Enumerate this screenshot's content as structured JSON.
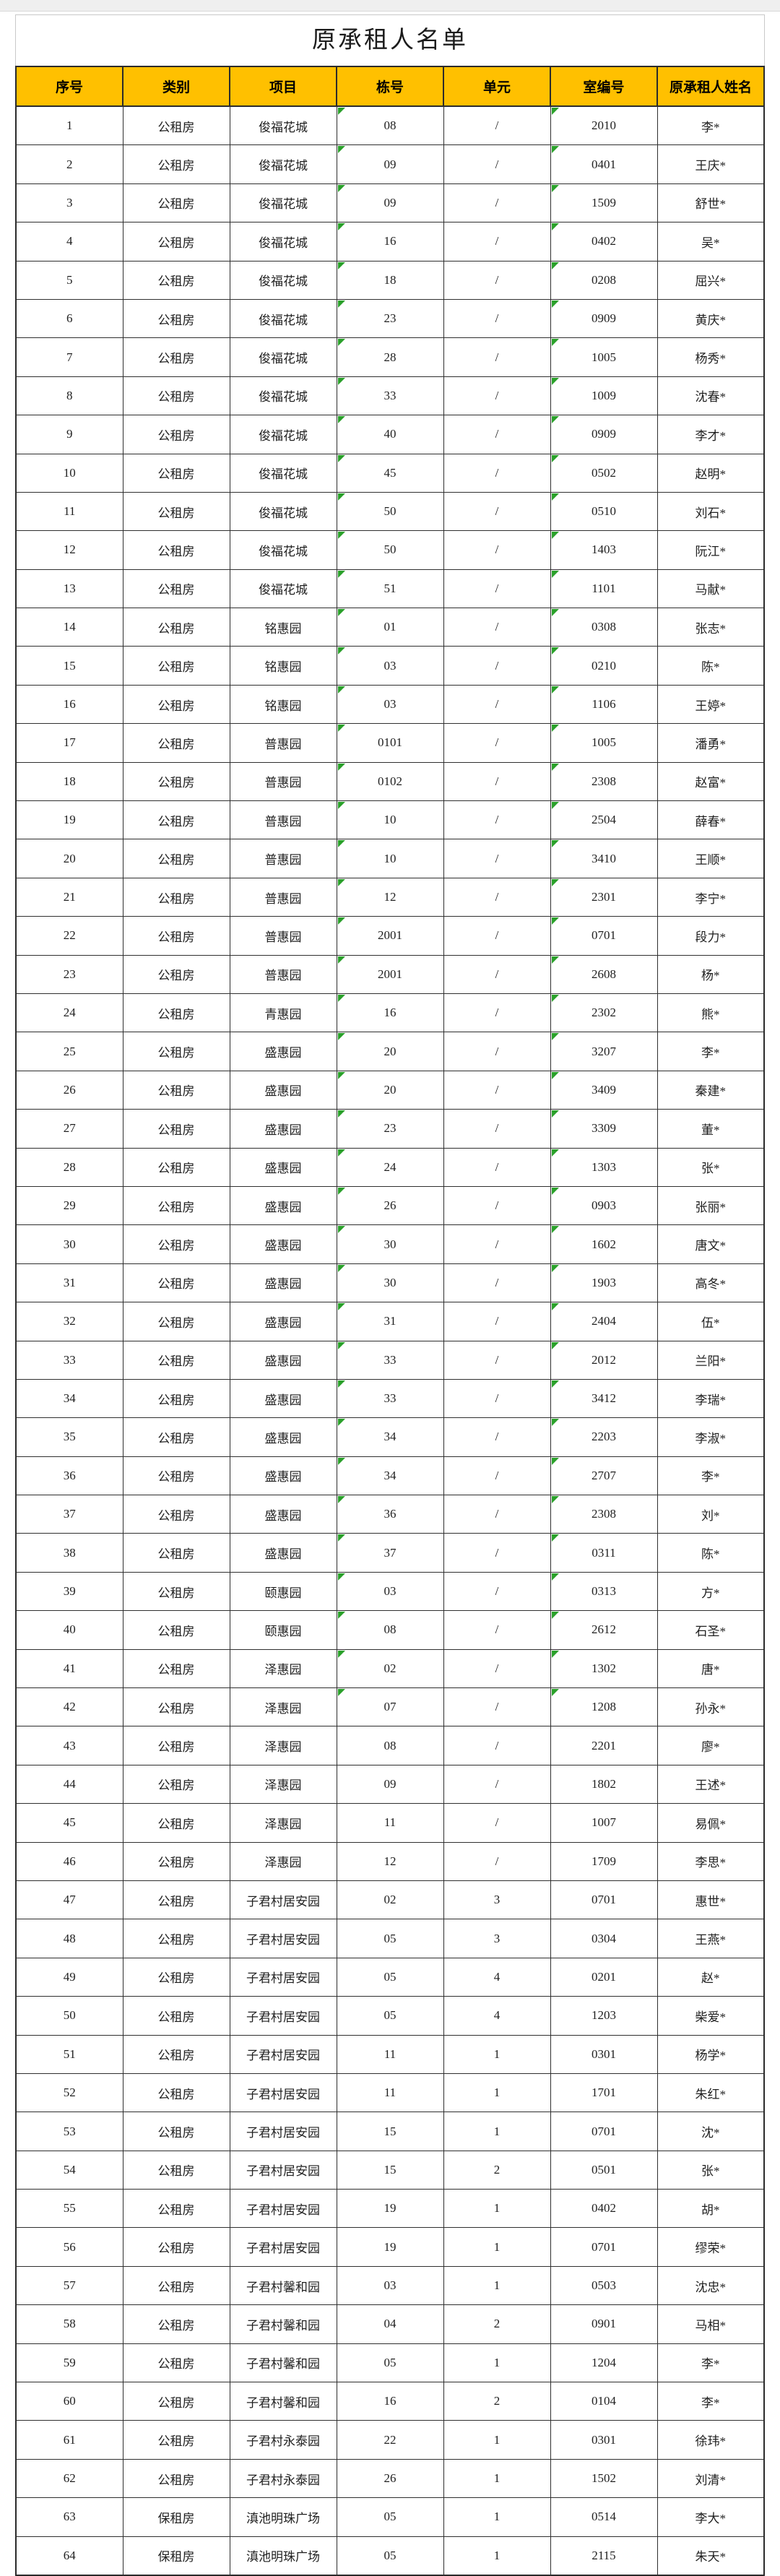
{
  "table": {
    "title": "原承租人名单",
    "columns": [
      "序号",
      "类别",
      "项目",
      "栋号",
      "单元",
      "室编号",
      "原承租人姓名"
    ],
    "rows": [
      [
        "1",
        "公租房",
        "俊福花城",
        "08",
        "/",
        "2010",
        "李*"
      ],
      [
        "2",
        "公租房",
        "俊福花城",
        "09",
        "/",
        "0401",
        "王庆*"
      ],
      [
        "3",
        "公租房",
        "俊福花城",
        "09",
        "/",
        "1509",
        "舒世*"
      ],
      [
        "4",
        "公租房",
        "俊福花城",
        "16",
        "/",
        "0402",
        "吴*"
      ],
      [
        "5",
        "公租房",
        "俊福花城",
        "18",
        "/",
        "0208",
        "屈兴*"
      ],
      [
        "6",
        "公租房",
        "俊福花城",
        "23",
        "/",
        "0909",
        "黄庆*"
      ],
      [
        "7",
        "公租房",
        "俊福花城",
        "28",
        "/",
        "1005",
        "杨秀*"
      ],
      [
        "8",
        "公租房",
        "俊福花城",
        "33",
        "/",
        "1009",
        "沈春*"
      ],
      [
        "9",
        "公租房",
        "俊福花城",
        "40",
        "/",
        "0909",
        "李才*"
      ],
      [
        "10",
        "公租房",
        "俊福花城",
        "45",
        "/",
        "0502",
        "赵明*"
      ],
      [
        "11",
        "公租房",
        "俊福花城",
        "50",
        "/",
        "0510",
        "刘石*"
      ],
      [
        "12",
        "公租房",
        "俊福花城",
        "50",
        "/",
        "1403",
        "阮江*"
      ],
      [
        "13",
        "公租房",
        "俊福花城",
        "51",
        "/",
        "1101",
        "马献*"
      ],
      [
        "14",
        "公租房",
        "铭惠园",
        "01",
        "/",
        "0308",
        "张志*"
      ],
      [
        "15",
        "公租房",
        "铭惠园",
        "03",
        "/",
        "0210",
        "陈*"
      ],
      [
        "16",
        "公租房",
        "铭惠园",
        "03",
        "/",
        "1106",
        "王婷*"
      ],
      [
        "17",
        "公租房",
        "普惠园",
        "0101",
        "/",
        "1005",
        "潘勇*"
      ],
      [
        "18",
        "公租房",
        "普惠园",
        "0102",
        "/",
        "2308",
        "赵富*"
      ],
      [
        "19",
        "公租房",
        "普惠园",
        "10",
        "/",
        "2504",
        "薛春*"
      ],
      [
        "20",
        "公租房",
        "普惠园",
        "10",
        "/",
        "3410",
        "王顺*"
      ],
      [
        "21",
        "公租房",
        "普惠园",
        "12",
        "/",
        "2301",
        "李宁*"
      ],
      [
        "22",
        "公租房",
        "普惠园",
        "2001",
        "/",
        "0701",
        "段力*"
      ],
      [
        "23",
        "公租房",
        "普惠园",
        "2001",
        "/",
        "2608",
        "杨*"
      ],
      [
        "24",
        "公租房",
        "青惠园",
        "16",
        "/",
        "2302",
        "熊*"
      ],
      [
        "25",
        "公租房",
        "盛惠园",
        "20",
        "/",
        "3207",
        "李*"
      ],
      [
        "26",
        "公租房",
        "盛惠园",
        "20",
        "/",
        "3409",
        "秦建*"
      ],
      [
        "27",
        "公租房",
        "盛惠园",
        "23",
        "/",
        "3309",
        "董*"
      ],
      [
        "28",
        "公租房",
        "盛惠园",
        "24",
        "/",
        "1303",
        "张*"
      ],
      [
        "29",
        "公租房",
        "盛惠园",
        "26",
        "/",
        "0903",
        "张丽*"
      ],
      [
        "30",
        "公租房",
        "盛惠园",
        "30",
        "/",
        "1602",
        "唐文*"
      ],
      [
        "31",
        "公租房",
        "盛惠园",
        "30",
        "/",
        "1903",
        "高冬*"
      ],
      [
        "32",
        "公租房",
        "盛惠园",
        "31",
        "/",
        "2404",
        "伍*"
      ],
      [
        "33",
        "公租房",
        "盛惠园",
        "33",
        "/",
        "2012",
        "兰阳*"
      ],
      [
        "34",
        "公租房",
        "盛惠园",
        "33",
        "/",
        "3412",
        "李瑞*"
      ],
      [
        "35",
        "公租房",
        "盛惠园",
        "34",
        "/",
        "2203",
        "李淑*"
      ],
      [
        "36",
        "公租房",
        "盛惠园",
        "34",
        "/",
        "2707",
        "李*"
      ],
      [
        "37",
        "公租房",
        "盛惠园",
        "36",
        "/",
        "2308",
        "刘*"
      ],
      [
        "38",
        "公租房",
        "盛惠园",
        "37",
        "/",
        "0311",
        "陈*"
      ],
      [
        "39",
        "公租房",
        "颐惠园",
        "03",
        "/",
        "0313",
        "方*"
      ],
      [
        "40",
        "公租房",
        "颐惠园",
        "08",
        "/",
        "2612",
        "石圣*"
      ],
      [
        "41",
        "公租房",
        "泽惠园",
        "02",
        "/",
        "1302",
        "唐*"
      ],
      [
        "42",
        "公租房",
        "泽惠园",
        "07",
        "/",
        "1208",
        "孙永*"
      ],
      [
        "43",
        "公租房",
        "泽惠园",
        "08",
        "/",
        "2201",
        "廖*"
      ],
      [
        "44",
        "公租房",
        "泽惠园",
        "09",
        "/",
        "1802",
        "王述*"
      ],
      [
        "45",
        "公租房",
        "泽惠园",
        "11",
        "/",
        "1007",
        "易佩*"
      ],
      [
        "46",
        "公租房",
        "泽惠园",
        "12",
        "/",
        "1709",
        "李思*"
      ],
      [
        "47",
        "公租房",
        "子君村居安园",
        "02",
        "3",
        "0701",
        "惠世*"
      ],
      [
        "48",
        "公租房",
        "子君村居安园",
        "05",
        "3",
        "0304",
        "王燕*"
      ],
      [
        "49",
        "公租房",
        "子君村居安园",
        "05",
        "4",
        "0201",
        "赵*"
      ],
      [
        "50",
        "公租房",
        "子君村居安园",
        "05",
        "4",
        "1203",
        "柴爱*"
      ],
      [
        "51",
        "公租房",
        "子君村居安园",
        "11",
        "1",
        "0301",
        "杨学*"
      ],
      [
        "52",
        "公租房",
        "子君村居安园",
        "11",
        "1",
        "1701",
        "朱红*"
      ],
      [
        "53",
        "公租房",
        "子君村居安园",
        "15",
        "1",
        "0701",
        "沈*"
      ],
      [
        "54",
        "公租房",
        "子君村居安园",
        "15",
        "2",
        "0501",
        "张*"
      ],
      [
        "55",
        "公租房",
        "子君村居安园",
        "19",
        "1",
        "0402",
        "胡*"
      ],
      [
        "56",
        "公租房",
        "子君村居安园",
        "19",
        "1",
        "0701",
        "缪荣*"
      ],
      [
        "57",
        "公租房",
        "子君村馨和园",
        "03",
        "1",
        "0503",
        "沈忠*"
      ],
      [
        "58",
        "公租房",
        "子君村馨和园",
        "04",
        "2",
        "0901",
        "马相*"
      ],
      [
        "59",
        "公租房",
        "子君村馨和园",
        "05",
        "1",
        "1204",
        "李*"
      ],
      [
        "60",
        "公租房",
        "子君村馨和园",
        "16",
        "2",
        "0104",
        "李*"
      ],
      [
        "61",
        "公租房",
        "子君村永泰园",
        "22",
        "1",
        "0301",
        "徐玮*"
      ],
      [
        "62",
        "公租房",
        "子君村永泰园",
        "26",
        "1",
        "1502",
        "刘清*"
      ],
      [
        "63",
        "保租房",
        "滇池明珠广场",
        "05",
        "1",
        "0514",
        "李大*"
      ],
      [
        "64",
        "保租房",
        "滇池明珠广场",
        "05",
        "1",
        "2115",
        "朱天*"
      ]
    ]
  },
  "colors": {
    "header_bg": "#ffc000",
    "header_text": "#000000",
    "grid_border": "#2f2f2f",
    "title_text": "#1c1c1c",
    "flag_triangle_green": "#2aa02a",
    "top_strip_bg": "#efefef"
  },
  "decorations": {
    "flag_column_indexes": [
      3,
      5
    ],
    "flag_row_count": 42
  }
}
